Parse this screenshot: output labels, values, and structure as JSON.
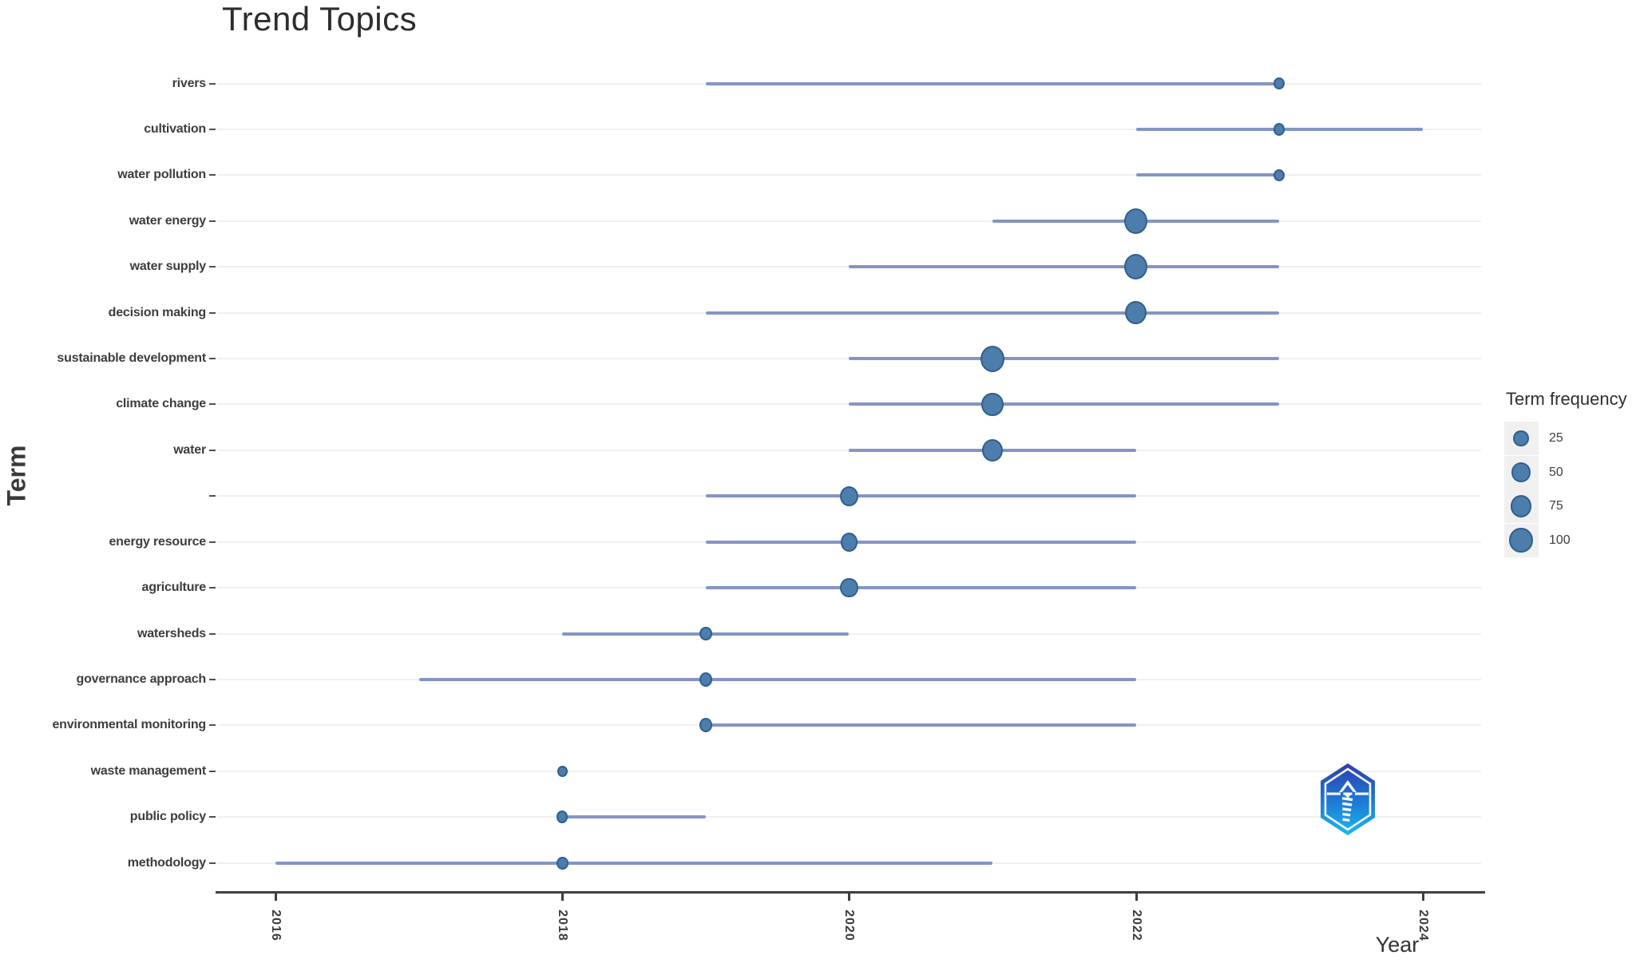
{
  "chart_data": {
    "type": "scatter",
    "subtype": "bubble-timeline",
    "title": "Trend Topics",
    "xlabel": "Year",
    "ylabel": "Term",
    "x_ticks": [
      "2016",
      "2018",
      "2020",
      "2022",
      "2024"
    ],
    "x_range": [
      2015.6,
      2024.4
    ],
    "grid": "horizontal-only",
    "legend": {
      "title": "Term frequency",
      "position": "right",
      "sizes": [
        25,
        50,
        75,
        100
      ]
    },
    "terms": [
      {
        "term": "rivers",
        "year_q1": 2019,
        "year_med": 2023,
        "year_q3": 2023,
        "freq": 5
      },
      {
        "term": "cultivation",
        "year_q1": 2022,
        "year_med": 2023,
        "year_q3": 2024,
        "freq": 5
      },
      {
        "term": "water pollution",
        "year_q1": 2022,
        "year_med": 2023,
        "year_q3": 2023,
        "freq": 5
      },
      {
        "term": "water energy",
        "year_q1": 2021,
        "year_med": 2022,
        "year_q3": 2023,
        "freq": 100
      },
      {
        "term": "water supply",
        "year_q1": 2020,
        "year_med": 2022,
        "year_q3": 2023,
        "freq": 100
      },
      {
        "term": "decision making",
        "year_q1": 2019,
        "year_med": 2022,
        "year_q3": 2023,
        "freq": 75
      },
      {
        "term": "sustainable development",
        "year_q1": 2020,
        "year_med": 2021,
        "year_q3": 2023,
        "freq": 110
      },
      {
        "term": "climate change",
        "year_q1": 2020,
        "year_med": 2021,
        "year_q3": 2023,
        "freq": 80
      },
      {
        "term": "water",
        "year_q1": 2020,
        "year_med": 2021,
        "year_q3": 2022,
        "freq": 70
      },
      {
        "term": "",
        "year_q1": 2019,
        "year_med": 2020,
        "year_q3": 2022,
        "freq": 45
      },
      {
        "term": "energy resource",
        "year_q1": 2019,
        "year_med": 2020,
        "year_q3": 2022,
        "freq": 35
      },
      {
        "term": "agriculture",
        "year_q1": 2019,
        "year_med": 2020,
        "year_q3": 2022,
        "freq": 40
      },
      {
        "term": "watersheds",
        "year_q1": 2018,
        "year_med": 2019,
        "year_q3": 2020,
        "freq": 8
      },
      {
        "term": "governance approach",
        "year_q1": 2017,
        "year_med": 2019,
        "year_q3": 2022,
        "freq": 10
      },
      {
        "term": "environmental monitoring",
        "year_q1": 2019,
        "year_med": 2019,
        "year_q3": 2022,
        "freq": 10
      },
      {
        "term": "waste management",
        "year_q1": 2018,
        "year_med": 2018,
        "year_q3": 2018,
        "freq": 3
      },
      {
        "term": "public policy",
        "year_q1": 2018,
        "year_med": 2018,
        "year_q3": 2019,
        "freq": 5
      },
      {
        "term": "methodology",
        "year_q1": 2016,
        "year_med": 2018,
        "year_q3": 2021,
        "freq": 6
      }
    ],
    "colors": {
      "bubble_fill": "#4d7dab",
      "bubble_stroke": "#2e5f90",
      "segment": "#8494c4",
      "gridline": "#f0f0f0",
      "axis": "#3f3f3f",
      "text": "#3d3d3d",
      "logo_top": "#2b3faf",
      "logo_bottom": "#17b9f2"
    }
  },
  "watermark": {
    "icon": "biblioshiny-hexagon-lighthouse-logo"
  }
}
